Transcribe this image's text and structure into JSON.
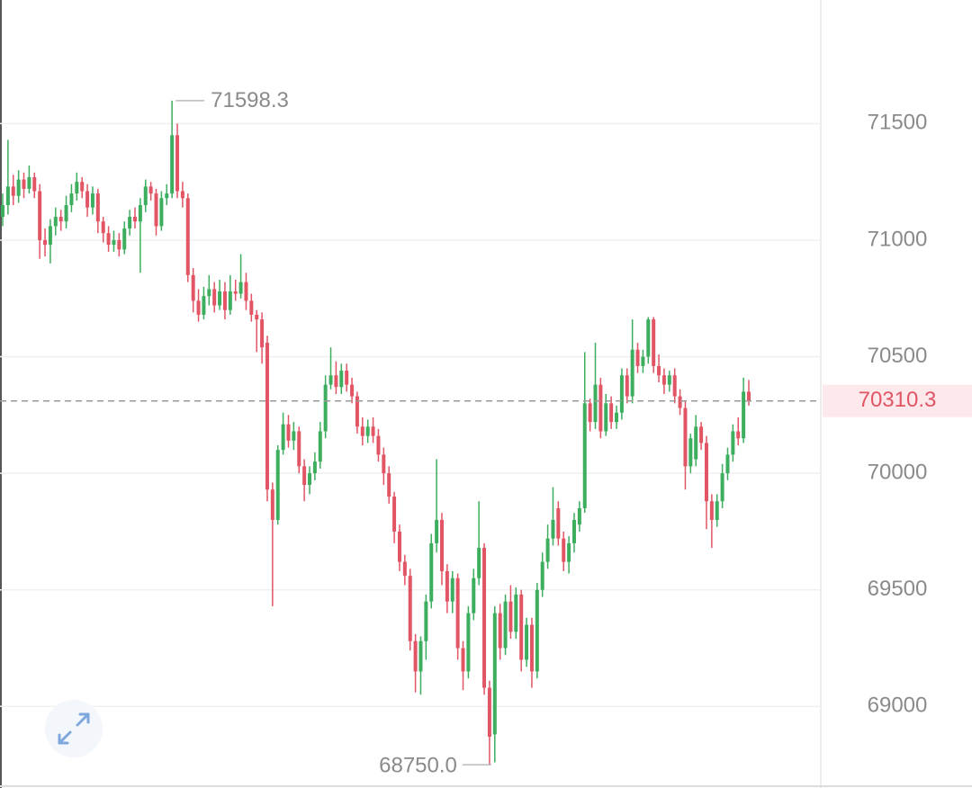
{
  "chart_data": {
    "type": "candlestick",
    "up_color": "#3dae5e",
    "down_color": "#e15565",
    "ylim": [
      68650,
      72030
    ],
    "yticks": [
      69000,
      69500,
      70000,
      70500,
      71000,
      71500
    ],
    "grid": true,
    "last_price": 70310.3,
    "high_label": 71598.3,
    "low_label": {
      "value": 68750,
      "label": "68750.0"
    },
    "candles": [
      [
        71100,
        71200,
        71060,
        71150
      ],
      [
        71150,
        71430,
        71110,
        71230
      ],
      [
        71230,
        71280,
        71150,
        71190
      ],
      [
        71190,
        71300,
        71160,
        71260
      ],
      [
        71260,
        71290,
        71180,
        71220
      ],
      [
        71220,
        71320,
        71200,
        71270
      ],
      [
        71270,
        71290,
        71180,
        71210
      ],
      [
        71210,
        71240,
        70920,
        71000
      ],
      [
        71000,
        71050,
        70930,
        70980
      ],
      [
        70980,
        71090,
        70900,
        71060
      ],
      [
        71060,
        71140,
        71020,
        71100
      ],
      [
        71100,
        71130,
        71040,
        71080
      ],
      [
        71080,
        71190,
        71050,
        71150
      ],
      [
        71150,
        71240,
        71120,
        71200
      ],
      [
        71200,
        71290,
        71170,
        71250
      ],
      [
        71250,
        71270,
        71180,
        71210
      ],
      [
        71210,
        71240,
        71100,
        71140
      ],
      [
        71140,
        71230,
        71110,
        71200
      ],
      [
        71200,
        71220,
        71030,
        71080
      ],
      [
        71080,
        71100,
        70990,
        71030
      ],
      [
        71030,
        71060,
        70950,
        70980
      ],
      [
        70980,
        71040,
        70950,
        71000
      ],
      [
        71000,
        71030,
        70930,
        70960
      ],
      [
        70960,
        71080,
        70940,
        71050
      ],
      [
        71050,
        71130,
        71020,
        71100
      ],
      [
        71100,
        71140,
        71050,
        71080
      ],
      [
        71080,
        71180,
        70860,
        71150
      ],
      [
        71150,
        71260,
        71120,
        71230
      ],
      [
        71230,
        71250,
        71170,
        71200
      ],
      [
        71200,
        71220,
        71020,
        71060
      ],
      [
        71060,
        71210,
        71040,
        71180
      ],
      [
        71180,
        71240,
        71150,
        71200
      ],
      [
        71200,
        71598.3,
        71180,
        71450
      ],
      [
        71450,
        71500,
        71180,
        71210
      ],
      [
        71210,
        71250,
        71140,
        71180
      ],
      [
        71180,
        71200,
        70820,
        70850
      ],
      [
        70850,
        70880,
        70690,
        70740
      ],
      [
        70740,
        70790,
        70650,
        70680
      ],
      [
        70680,
        70800,
        70660,
        70760
      ],
      [
        70760,
        70850,
        70720,
        70790
      ],
      [
        70790,
        70820,
        70690,
        70720
      ],
      [
        70720,
        70830,
        70700,
        70780
      ],
      [
        70780,
        70820,
        70660,
        70700
      ],
      [
        70700,
        70850,
        70680,
        70780
      ],
      [
        70780,
        70830,
        70740,
        70770
      ],
      [
        70770,
        70940,
        70750,
        70820
      ],
      [
        70820,
        70860,
        70700,
        70740
      ],
      [
        70740,
        70770,
        70650,
        70680
      ],
      [
        70680,
        70700,
        70520,
        70660
      ],
      [
        70660,
        70690,
        70470,
        70540
      ],
      [
        70560,
        70590,
        69880,
        69930
      ],
      [
        69930,
        69960,
        69430,
        69800
      ],
      [
        69800,
        70120,
        69780,
        70100
      ],
      [
        70100,
        70260,
        70080,
        70210
      ],
      [
        70210,
        70250,
        70110,
        70140
      ],
      [
        70140,
        70220,
        70100,
        70180
      ],
      [
        70180,
        70200,
        70000,
        70030
      ],
      [
        70030,
        70060,
        69880,
        69950
      ],
      [
        69950,
        70030,
        69910,
        70000
      ],
      [
        70000,
        70090,
        69970,
        70050
      ],
      [
        70050,
        70220,
        70020,
        70180
      ],
      [
        70180,
        70420,
        70150,
        70380
      ],
      [
        70380,
        70540,
        70360,
        70420
      ],
      [
        70420,
        70480,
        70340,
        70370
      ],
      [
        70370,
        70470,
        70340,
        70440
      ],
      [
        70440,
        70470,
        70350,
        70380
      ],
      [
        70380,
        70410,
        70300,
        70330
      ],
      [
        70330,
        70350,
        70170,
        70200
      ],
      [
        70200,
        70240,
        70120,
        70160
      ],
      [
        70160,
        70230,
        70130,
        70200
      ],
      [
        70200,
        70240,
        70130,
        70160
      ],
      [
        70160,
        70190,
        70050,
        70080
      ],
      [
        70080,
        70110,
        69950,
        70000
      ],
      [
        70000,
        70030,
        69870,
        69900
      ],
      [
        69900,
        69920,
        69700,
        69750
      ],
      [
        69750,
        69780,
        69580,
        69620
      ],
      [
        69620,
        69650,
        69520,
        69560
      ],
      [
        69560,
        69590,
        69240,
        69280
      ],
      [
        69280,
        69310,
        69060,
        69150
      ],
      [
        69150,
        69300,
        69050,
        69280
      ],
      [
        69280,
        69480,
        69200,
        69450
      ],
      [
        69450,
        69740,
        69420,
        69700
      ],
      [
        69700,
        70060,
        69660,
        69800
      ],
      [
        69800,
        69830,
        69520,
        69580
      ],
      [
        69580,
        69610,
        69400,
        69450
      ],
      [
        69450,
        69580,
        69400,
        69550
      ],
      [
        69550,
        69570,
        69200,
        69250
      ],
      [
        69250,
        69280,
        69070,
        69150
      ],
      [
        69150,
        69430,
        69120,
        69400
      ],
      [
        69400,
        69590,
        69370,
        69550
      ],
      [
        69550,
        69880,
        69520,
        69680
      ],
      [
        69680,
        69700,
        69050,
        69080
      ],
      [
        69080,
        69110,
        68750,
        68870
      ],
      [
        68880,
        69430,
        68760,
        69400
      ],
      [
        69400,
        69440,
        69200,
        69250
      ],
      [
        69250,
        69480,
        69220,
        69450
      ],
      [
        69450,
        69520,
        69290,
        69320
      ],
      [
        69320,
        69510,
        69290,
        69480
      ],
      [
        69480,
        69500,
        69150,
        69200
      ],
      [
        69200,
        69380,
        69170,
        69350
      ],
      [
        69350,
        69380,
        69080,
        69150
      ],
      [
        69150,
        69530,
        69120,
        69500
      ],
      [
        69500,
        69660,
        69470,
        69620
      ],
      [
        69620,
        69780,
        69590,
        69720
      ],
      [
        69720,
        69940,
        69690,
        69800
      ],
      [
        69850,
        69880,
        69690,
        69720
      ],
      [
        69720,
        69750,
        69580,
        69620
      ],
      [
        69620,
        69730,
        69570,
        69700
      ],
      [
        69700,
        69830,
        69660,
        69800
      ],
      [
        69780,
        69880,
        69750,
        69850
      ],
      [
        69850,
        70520,
        69830,
        70300
      ],
      [
        70300,
        70320,
        70180,
        70220
      ],
      [
        70220,
        70560,
        70190,
        70380
      ],
      [
        70380,
        70410,
        70150,
        70180
      ],
      [
        70180,
        70340,
        70160,
        70300
      ],
      [
        70300,
        70330,
        70190,
        70220
      ],
      [
        70220,
        70290,
        70190,
        70260
      ],
      [
        70260,
        70450,
        70230,
        70420
      ],
      [
        70420,
        70450,
        70300,
        70330
      ],
      [
        70330,
        70660,
        70300,
        70530
      ],
      [
        70530,
        70560,
        70430,
        70460
      ],
      [
        70460,
        70530,
        70430,
        70500
      ],
      [
        70500,
        70670,
        70470,
        70660
      ],
      [
        70660,
        70670,
        70430,
        70460
      ],
      [
        70460,
        70510,
        70390,
        70420
      ],
      [
        70420,
        70450,
        70340,
        70380
      ],
      [
        70380,
        70440,
        70350,
        70420
      ],
      [
        70420,
        70450,
        70300,
        70330
      ],
      [
        70330,
        70360,
        70250,
        70280
      ],
      [
        70280,
        70310,
        69930,
        70030
      ],
      [
        70030,
        70170,
        70000,
        70150
      ],
      [
        70060,
        70250,
        70030,
        70200
      ],
      [
        70200,
        70220,
        70100,
        70130
      ],
      [
        70130,
        70160,
        69760,
        69880
      ],
      [
        69880,
        69910,
        69680,
        69800
      ],
      [
        69800,
        69910,
        69770,
        69880
      ],
      [
        69880,
        70040,
        69850,
        70000
      ],
      [
        70000,
        70110,
        69970,
        70080
      ],
      [
        70080,
        70210,
        70050,
        70180
      ],
      [
        70180,
        70240,
        70120,
        70150
      ],
      [
        70150,
        70410,
        70130,
        70350
      ],
      [
        70350,
        70400,
        70290,
        70310.3
      ]
    ]
  }
}
